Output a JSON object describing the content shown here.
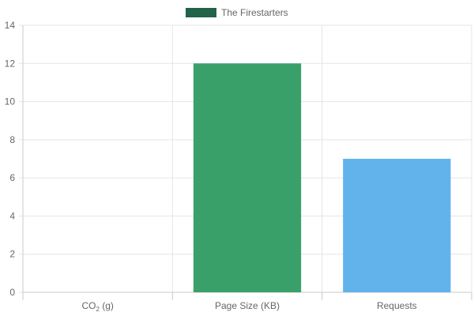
{
  "chart_data": {
    "type": "bar",
    "categories": [
      {
        "label": "CO",
        "sub": "2",
        "suffix": " (g)"
      },
      {
        "label": "Page Size (KB)"
      },
      {
        "label": "Requests"
      }
    ],
    "series": [
      {
        "name": "The Firestarters",
        "values": [
          0,
          12,
          7
        ],
        "colors": [
          "#3aa06a",
          "#3aa06a",
          "#62b3ec"
        ]
      }
    ],
    "legend": {
      "position": "top",
      "swatch_color": "#22634a"
    },
    "ylim": [
      0,
      14
    ],
    "yticks": [
      0,
      2,
      4,
      6,
      8,
      10,
      12,
      14
    ],
    "grid": true,
    "grid_color": "#e5e5e5",
    "axis_color": "#c8c8c8"
  }
}
